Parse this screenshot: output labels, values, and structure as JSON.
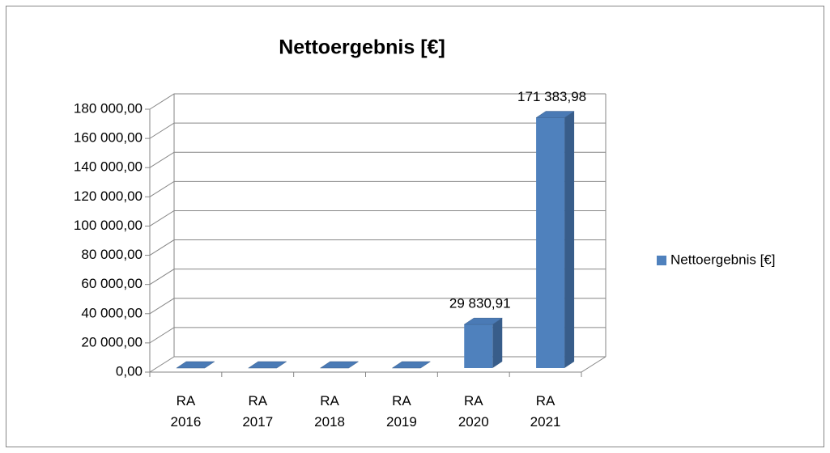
{
  "chart_data": {
    "type": "bar3d",
    "title": "Nettoergebnis [€]",
    "categories": [
      "RA 2016",
      "RA 2017",
      "RA 2018",
      "RA 2019",
      "RA 2020",
      "RA 2021"
    ],
    "series": [
      {
        "name": "Nettoergebnis [€]",
        "color": "#4f81bd",
        "values": [
          0,
          0,
          0,
          0,
          29830.91,
          171383.98
        ],
        "value_labels": [
          null,
          null,
          null,
          null,
          "29 830,91",
          "171 383,98"
        ]
      }
    ],
    "ylim": [
      0,
      180000
    ],
    "yticks": [
      {
        "value": 0,
        "label": "0,00"
      },
      {
        "value": 20000,
        "label": "20 000,00"
      },
      {
        "value": 40000,
        "label": "40 000,00"
      },
      {
        "value": 60000,
        "label": "60 000,00"
      },
      {
        "value": 80000,
        "label": "80 000,00"
      },
      {
        "value": 100000,
        "label": "100 000,00"
      },
      {
        "value": 120000,
        "label": "120 000,00"
      },
      {
        "value": 140000,
        "label": "140 000,00"
      },
      {
        "value": 160000,
        "label": "160 000,00"
      },
      {
        "value": 180000,
        "label": "180 000,00"
      }
    ],
    "grid": true,
    "legend": "right"
  }
}
